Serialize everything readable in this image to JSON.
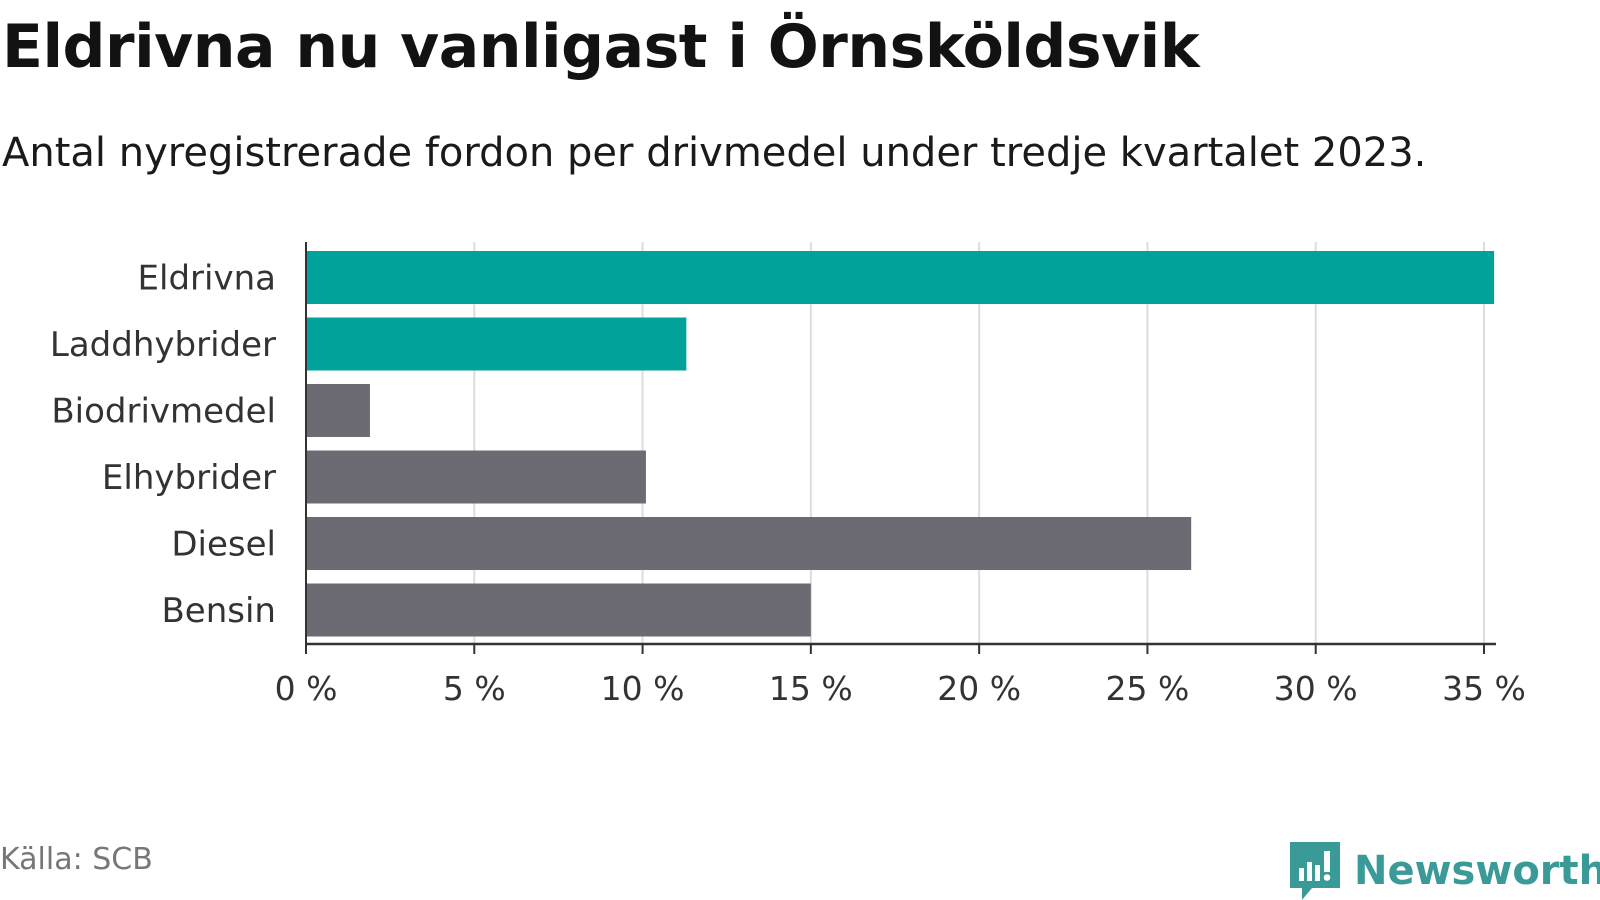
{
  "header": {
    "title": "Eldrivna nu vanligast i Örnsköldsvik",
    "subtitle": "Antal nyregistrerade fordon per drivmedel under tredje kvartalet 2023."
  },
  "footer": {
    "source": "Källa: SCB",
    "brand": "Newsworthy",
    "brand_color": "#3a9a98",
    "logo_icon": "bar-chart-speech-bubble-icon"
  },
  "chart_data": {
    "type": "bar",
    "orientation": "horizontal",
    "categories": [
      "Eldrivna",
      "Laddhybrider",
      "Biodrivmedel",
      "Elhybrider",
      "Diesel",
      "Bensin"
    ],
    "values": [
      35.3,
      11.3,
      1.9,
      10.1,
      26.3,
      15.0
    ],
    "colors": [
      "#00a29a",
      "#00a29a",
      "#6c6b73",
      "#6c6b73",
      "#6c6b73",
      "#6c6b73"
    ],
    "xlim": [
      0,
      35
    ],
    "xticks": [
      0,
      5,
      10,
      15,
      20,
      25,
      30,
      35
    ],
    "xtick_labels": [
      "0 %",
      "5 %",
      "10 %",
      "15 %",
      "20 %",
      "25 %",
      "30 %",
      "35 %"
    ],
    "grid": true,
    "xlabel": "",
    "ylabel": ""
  }
}
